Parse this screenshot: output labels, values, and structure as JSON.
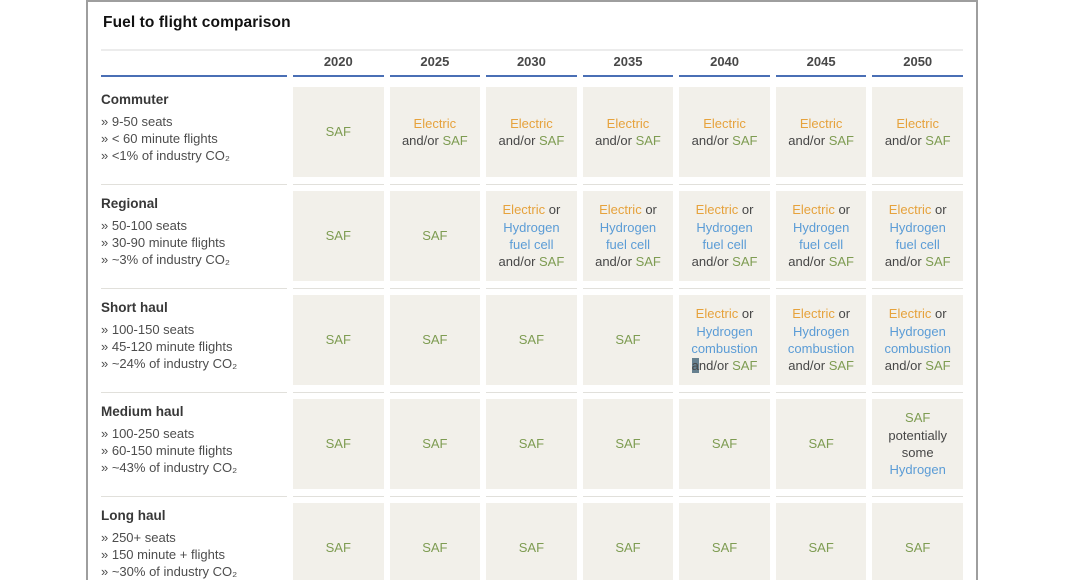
{
  "page": {
    "title": "Fuel to flight comparison"
  },
  "years": [
    "2020",
    "2025",
    "2030",
    "2035",
    "2040",
    "2045",
    "2050"
  ],
  "colors": {
    "saf": "#7e9c52",
    "electric": "#e6a23c",
    "hydrogen": "#5b9cd6",
    "plain": "#474747",
    "cell_bg": "#f2f0ea",
    "header_line": "#4a6fb5"
  },
  "cell_defs": {
    "saf": [
      [
        {
          "t": "SAF",
          "c": "saf"
        }
      ]
    ],
    "electric_saf": [
      [
        {
          "t": "Electric",
          "c": "electric"
        }
      ],
      [
        {
          "t": "and/or ",
          "c": "plain"
        },
        {
          "t": "SAF",
          "c": "saf"
        }
      ]
    ],
    "electric_h2_fuelcell_saf": [
      [
        {
          "t": "Electric",
          "c": "electric"
        },
        {
          "t": " or",
          "c": "plain"
        }
      ],
      [
        {
          "t": "Hydrogen",
          "c": "hydrogen"
        }
      ],
      [
        {
          "t": "fuel cell",
          "c": "hydrogen"
        }
      ],
      [
        {
          "t": "and/or ",
          "c": "plain"
        },
        {
          "t": "SAF",
          "c": "saf"
        }
      ]
    ],
    "electric_h2_combustion_saf": [
      [
        {
          "t": "Electric",
          "c": "electric"
        },
        {
          "t": " or",
          "c": "plain"
        }
      ],
      [
        {
          "t": "Hydrogen",
          "c": "hydrogen"
        }
      ],
      [
        {
          "t": "combustion",
          "c": "hydrogen"
        }
      ],
      [
        {
          "t": "and/or ",
          "c": "plain"
        },
        {
          "t": "SAF",
          "c": "saf"
        }
      ]
    ],
    "electric_h2_combustion_saf_cursor": [
      [
        {
          "t": "Electric",
          "c": "electric"
        },
        {
          "t": " or",
          "c": "plain"
        }
      ],
      [
        {
          "t": "Hydrogen",
          "c": "hydrogen"
        }
      ],
      [
        {
          "t": "combustion",
          "c": "hydrogen"
        }
      ],
      [
        {
          "t": "a",
          "c": "plain",
          "hl": true
        },
        {
          "t": "nd/or ",
          "c": "plain"
        },
        {
          "t": "SAF",
          "c": "saf"
        }
      ]
    ],
    "saf_potentially_h2": [
      [
        {
          "t": "SAF",
          "c": "saf"
        }
      ],
      [
        {
          "t": "potentially",
          "c": "plain"
        }
      ],
      [
        {
          "t": "some",
          "c": "plain"
        }
      ],
      [
        {
          "t": "Hydrogen",
          "c": "hydrogen"
        }
      ]
    ]
  },
  "rows": [
    {
      "category": "Commuter",
      "bullets": [
        "» 9-50 seats",
        "» < 60 minute flights",
        "» <1% of industry CO₂"
      ],
      "cells": [
        "saf",
        "electric_saf",
        "electric_saf",
        "electric_saf",
        "electric_saf",
        "electric_saf",
        "electric_saf"
      ]
    },
    {
      "category": "Regional",
      "bullets": [
        "» 50-100 seats",
        "» 30-90 minute flights",
        "» ~3% of industry CO₂"
      ],
      "cells": [
        "saf",
        "saf",
        "electric_h2_fuelcell_saf",
        "electric_h2_fuelcell_saf",
        "electric_h2_fuelcell_saf",
        "electric_h2_fuelcell_saf",
        "electric_h2_fuelcell_saf"
      ]
    },
    {
      "category": "Short haul",
      "bullets": [
        "» 100-150 seats",
        "» 45-120 minute flights",
        "» ~24% of industry CO₂"
      ],
      "cells": [
        "saf",
        "saf",
        "saf",
        "saf",
        "electric_h2_combustion_saf_cursor",
        "electric_h2_combustion_saf",
        "electric_h2_combustion_saf"
      ]
    },
    {
      "category": "Medium haul",
      "bullets": [
        "» 100-250 seats",
        "» 60-150 minute flights",
        "» ~43% of industry CO₂"
      ],
      "cells": [
        "saf",
        "saf",
        "saf",
        "saf",
        "saf",
        "saf",
        "saf_potentially_h2"
      ]
    },
    {
      "category": "Long haul",
      "bullets": [
        "» 250+ seats",
        "» 150 minute + flights",
        "» ~30% of industry CO₂"
      ],
      "cells": [
        "saf",
        "saf",
        "saf",
        "saf",
        "saf",
        "saf",
        "saf"
      ]
    }
  ],
  "chart_data": {
    "type": "table",
    "title": "Fuel to flight comparison",
    "columns": [
      "2020",
      "2025",
      "2030",
      "2035",
      "2040",
      "2045",
      "2050"
    ],
    "rows": [
      {
        "category": "Commuter",
        "details": [
          "9-50 seats",
          "< 60 minute flights",
          "<1% of industry CO₂"
        ],
        "values": [
          "SAF",
          "Electric and/or SAF",
          "Electric and/or SAF",
          "Electric and/or SAF",
          "Electric and/or SAF",
          "Electric and/or SAF",
          "Electric and/or SAF"
        ]
      },
      {
        "category": "Regional",
        "details": [
          "50-100 seats",
          "30-90 minute flights",
          "~3% of industry CO₂"
        ],
        "values": [
          "SAF",
          "SAF",
          "Electric or Hydrogen fuel cell and/or SAF",
          "Electric or Hydrogen fuel cell and/or SAF",
          "Electric or Hydrogen fuel cell and/or SAF",
          "Electric or Hydrogen fuel cell and/or SAF",
          "Electric or Hydrogen fuel cell and/or SAF"
        ]
      },
      {
        "category": "Short haul",
        "details": [
          "100-150 seats",
          "45-120 minute flights",
          "~24% of industry CO₂"
        ],
        "values": [
          "SAF",
          "SAF",
          "SAF",
          "SAF",
          "Electric or Hydrogen combustion and/or SAF",
          "Electric or Hydrogen combustion and/or SAF",
          "Electric or Hydrogen combustion and/or SAF"
        ]
      },
      {
        "category": "Medium haul",
        "details": [
          "100-250 seats",
          "60-150 minute flights",
          "~43% of industry CO₂"
        ],
        "values": [
          "SAF",
          "SAF",
          "SAF",
          "SAF",
          "SAF",
          "SAF",
          "SAF potentially some Hydrogen"
        ]
      },
      {
        "category": "Long haul",
        "details": [
          "250+ seats",
          "150 minute + flights",
          "~30% of industry CO₂"
        ],
        "values": [
          "SAF",
          "SAF",
          "SAF",
          "SAF",
          "SAF",
          "SAF",
          "SAF"
        ]
      }
    ]
  }
}
